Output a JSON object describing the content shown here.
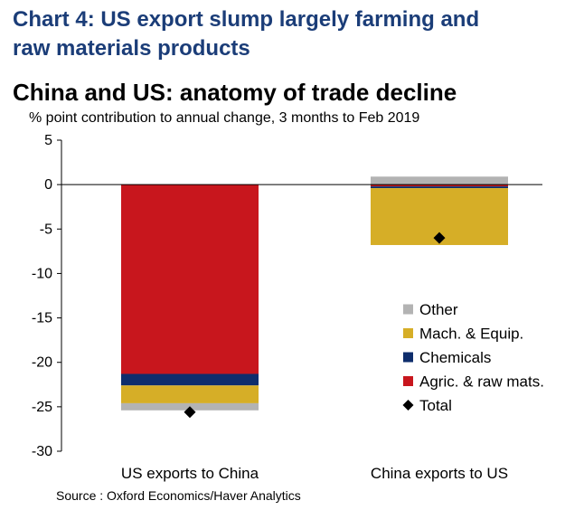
{
  "header": {
    "title_line1": "Chart 4: US export slump largely farming and",
    "title_line2": "raw materials products"
  },
  "chart_data": {
    "type": "bar",
    "stacked": true,
    "title": "China and US: anatomy of trade decline",
    "subtitle": "% point contribution to annual change, 3 months to Feb 2019",
    "categories": [
      "US exports to China",
      "China exports to US"
    ],
    "series": [
      {
        "name": "Other",
        "color": "#b3b3b3",
        "values": [
          -0.8,
          0.9
        ]
      },
      {
        "name": "Mach. & Equip.",
        "color": "#d6ae27",
        "values": [
          -2.0,
          -6.4
        ]
      },
      {
        "name": "Chemicals",
        "color": "#0e2d6c",
        "values": [
          -1.3,
          -0.2
        ]
      },
      {
        "name": "Agric. & raw mats.",
        "color": "#c8161d",
        "values": [
          -21.3,
          -0.2
        ]
      }
    ],
    "total": {
      "name": "Total",
      "values": [
        -25.6,
        -6.0
      ]
    },
    "ylim": [
      -30,
      5
    ],
    "yticks": [
      "5",
      "0",
      "-5",
      "-10",
      "-15",
      "-20",
      "-25",
      "-30"
    ],
    "legend_position": "right",
    "grid": false
  },
  "footer": {
    "source": "Source : Oxford Economics/Haver Analytics"
  }
}
